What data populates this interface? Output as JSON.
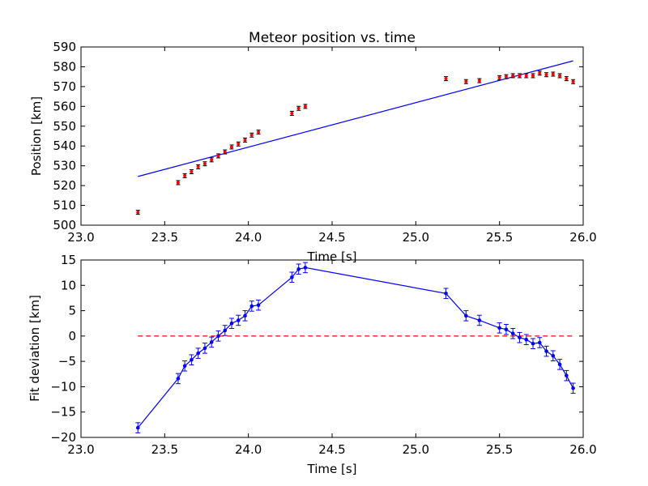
{
  "chart_data": [
    {
      "type": "scatter",
      "title": "Meteor position vs. time",
      "xlabel": "Time [s]",
      "ylabel": "Position [km]",
      "xlim": [
        23.0,
        26.0
      ],
      "ylim": [
        500,
        590
      ],
      "xticks": [
        "23.0",
        "23.5",
        "24.0",
        "24.5",
        "25.0",
        "25.5",
        "26.0"
      ],
      "yticks": [
        "500",
        "510",
        "520",
        "530",
        "540",
        "550",
        "560",
        "570",
        "580",
        "590"
      ],
      "grid": false,
      "colors": {
        "points": "#ff0000",
        "fit_line": "#0000ff"
      },
      "series": [
        {
          "x": [
            23.34,
            23.58,
            23.62,
            23.66,
            23.7,
            23.74,
            23.78,
            23.82,
            23.86,
            23.9,
            23.94,
            23.98,
            24.02,
            24.06,
            24.26,
            24.3,
            24.34,
            25.18,
            25.3,
            25.38,
            25.5,
            25.54,
            25.58,
            25.62,
            25.66,
            25.7,
            25.74,
            25.78,
            25.82,
            25.86,
            25.9,
            25.94
          ],
          "y": [
            506.5,
            521.5,
            525.0,
            527.0,
            529.5,
            531.0,
            533.0,
            535.0,
            537.0,
            539.5,
            541.0,
            543.0,
            545.5,
            547.0,
            556.5,
            559.0,
            560.0,
            574.0,
            572.5,
            573.0,
            574.5,
            575.0,
            575.5,
            575.5,
            575.5,
            575.5,
            576.8,
            576.0,
            576.3,
            575.5,
            574.0,
            572.5
          ]
        },
        {
          "x": [
            23.34,
            25.94
          ],
          "y": [
            524.6,
            583.0
          ]
        }
      ]
    },
    {
      "type": "line",
      "title": "",
      "xlabel": "Time [s]",
      "ylabel": "Fit deviation [km]",
      "xlim": [
        23.0,
        26.0
      ],
      "ylim": [
        -20,
        15
      ],
      "xticks": [
        "23.0",
        "23.5",
        "24.0",
        "24.5",
        "25.0",
        "25.5",
        "26.0"
      ],
      "yticks": [
        "−20",
        "−15",
        "−10",
        "−5",
        "0",
        "5",
        "10",
        "15"
      ],
      "grid": false,
      "colors": {
        "line": "#0000ff",
        "zero_line": "#ff0000"
      },
      "series": [
        {
          "x": [
            23.34,
            23.58,
            23.62,
            23.66,
            23.7,
            23.74,
            23.78,
            23.82,
            23.86,
            23.9,
            23.94,
            23.98,
            24.02,
            24.06,
            24.26,
            24.3,
            24.34,
            25.18,
            25.3,
            25.38,
            25.5,
            25.54,
            25.58,
            25.62,
            25.66,
            25.7,
            25.74,
            25.78,
            25.82,
            25.86,
            25.9,
            25.94
          ],
          "y": [
            -18.1,
            -8.4,
            -5.9,
            -4.7,
            -3.4,
            -2.4,
            -1.2,
            0.0,
            1.1,
            2.5,
            3.1,
            4.0,
            5.9,
            6.1,
            11.6,
            13.2,
            13.5,
            8.4,
            4.0,
            3.1,
            1.6,
            1.3,
            0.5,
            -0.3,
            -0.7,
            -1.5,
            -1.3,
            -3.0,
            -3.9,
            -5.6,
            -7.8,
            -10.3
          ],
          "err": 1.0
        },
        {
          "x": [
            23.34,
            25.94
          ],
          "y": [
            0,
            0
          ]
        }
      ]
    }
  ]
}
